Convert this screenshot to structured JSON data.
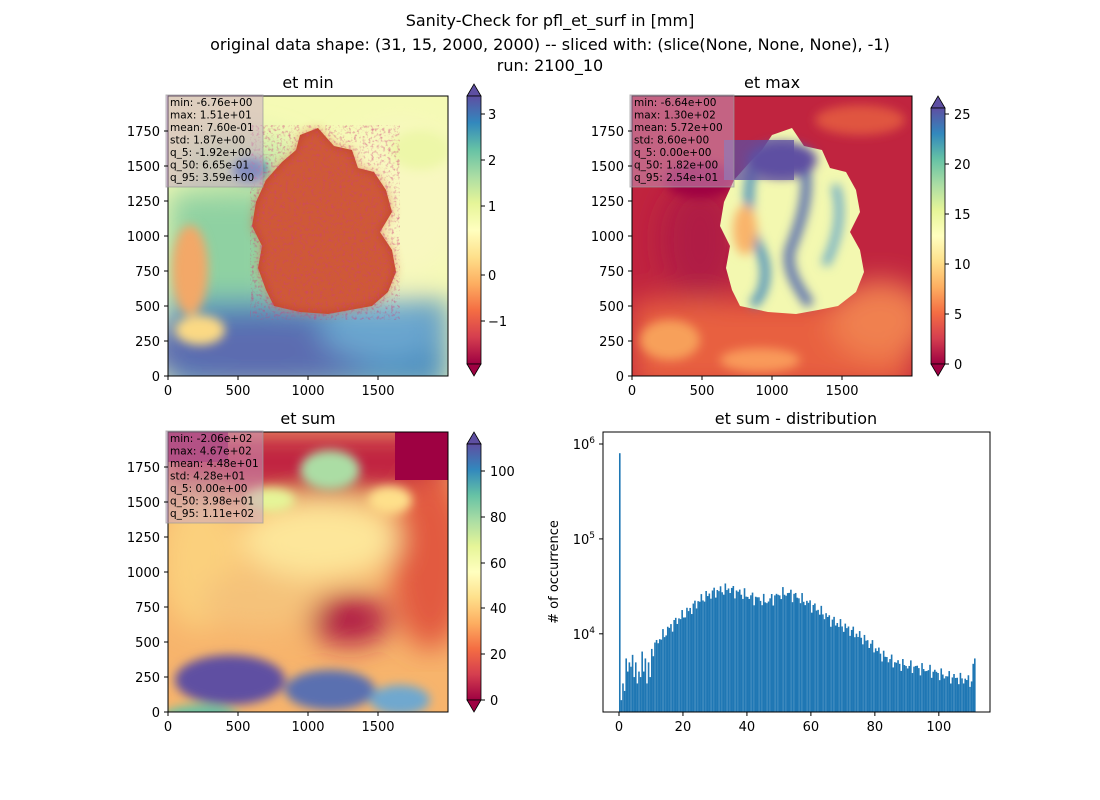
{
  "figure": {
    "title_line1": "Sanity-Check for pfl_et_surf in [mm]",
    "title_line2": "original data shape: (31, 15, 2000, 2000) -- sliced with: (slice(None, None, None), -1)",
    "title_line3": "run: 2100_10"
  },
  "colors": {
    "hist_bar": "#1f77b4",
    "stats_box": "#c8a2c8",
    "colormap": "Spectral",
    "colormap_stops": [
      "#9e0142",
      "#d53e4f",
      "#f46d43",
      "#fdae61",
      "#fee08b",
      "#ffffbf",
      "#e6f598",
      "#abdda4",
      "#66c2a5",
      "#3288bd",
      "#5e4fa2"
    ]
  },
  "chart_data": [
    {
      "type": "heatmap",
      "title": "et min",
      "xticks": [
        "0",
        "500",
        "1000",
        "1500"
      ],
      "yticks": [
        "0",
        "250",
        "500",
        "750",
        "1000",
        "1250",
        "1500",
        "1750"
      ],
      "xlim": [
        0,
        2000
      ],
      "ylim": [
        0,
        2000
      ],
      "colorbar_ticks": [
        "3",
        "2",
        "1",
        "0",
        "−1"
      ],
      "colorbar_range": [
        -2.0,
        3.7
      ],
      "stats": [
        "min: -6.76e+00",
        "max: 1.51e+01",
        "mean: 7.60e-01",
        "std: 1.87e+00",
        "q_5: -1.92e+00",
        "q_50: 6.65e-01",
        "q_95: 3.59e+00"
      ]
    },
    {
      "type": "heatmap",
      "title": "et max",
      "xticks": [
        "0",
        "500",
        "1000",
        "1500"
      ],
      "yticks": [
        "0",
        "250",
        "500",
        "750",
        "1000",
        "1250",
        "1500",
        "1750"
      ],
      "xlim": [
        0,
        2000
      ],
      "ylim": [
        0,
        2000
      ],
      "colorbar_ticks": [
        "25",
        "20",
        "15",
        "10",
        "5",
        "0"
      ],
      "colorbar_range": [
        0,
        26
      ],
      "stats": [
        "min: -6.64e+00",
        "max: 1.30e+02",
        "mean: 5.72e+00",
        "std: 8.60e+00",
        "q_5: 0.00e+00",
        "q_50: 1.82e+00",
        "q_95: 2.54e+01"
      ]
    },
    {
      "type": "heatmap",
      "title": "et sum",
      "xticks": [
        "0",
        "500",
        "1000",
        "1500"
      ],
      "yticks": [
        "0",
        "250",
        "500",
        "750",
        "1000",
        "1250",
        "1500",
        "1750"
      ],
      "xlim": [
        0,
        2000
      ],
      "ylim": [
        0,
        2000
      ],
      "colorbar_ticks": [
        "100",
        "80",
        "60",
        "40",
        "20",
        "0"
      ],
      "colorbar_range": [
        0,
        116
      ],
      "stats": [
        "min: -2.06e+02",
        "max: 4.67e+02",
        "mean: 4.48e+01",
        "std: 4.28e+01",
        "q_5: 0.00e+00",
        "q_50: 3.98e+01",
        "q_95: 1.11e+02"
      ]
    },
    {
      "type": "bar",
      "title": "et sum - distribution",
      "ylabel": "# of occurrence",
      "yscale": "log",
      "ylim": [
        1500,
        1000000
      ],
      "xlim": [
        -5,
        116
      ],
      "xticks": [
        0,
        20,
        40,
        60,
        80,
        100
      ],
      "yticks": [
        {
          "base": "10",
          "exp": "4",
          "value": 10000
        },
        {
          "base": "10",
          "exp": "5",
          "value": 100000
        },
        {
          "base": "10",
          "exp": "6",
          "value": 1000000
        }
      ],
      "bin_width": 0.5,
      "bins": [
        [
          0,
          800000
        ],
        [
          0.5,
          2000
        ],
        [
          1,
          3000
        ],
        [
          1.5,
          2500
        ],
        [
          2,
          5500
        ],
        [
          2.5,
          4000
        ],
        [
          3,
          5000
        ],
        [
          3.5,
          4500
        ],
        [
          4,
          6000
        ],
        [
          4.5,
          3500
        ],
        [
          5,
          5000
        ],
        [
          5.5,
          3000
        ],
        [
          6,
          4000
        ],
        [
          6.5,
          3500
        ],
        [
          7,
          6500
        ],
        [
          7.5,
          4000
        ],
        [
          8,
          5500
        ],
        [
          8.5,
          3000
        ],
        [
          9,
          5000
        ],
        [
          9.5,
          3500
        ],
        [
          10,
          6500
        ],
        [
          12,
          8500
        ],
        [
          14,
          10000
        ],
        [
          16,
          12000
        ],
        [
          18,
          14000
        ],
        [
          20,
          16000
        ],
        [
          22,
          18000
        ],
        [
          24,
          21000
        ],
        [
          26,
          24000
        ],
        [
          28,
          26000
        ],
        [
          30,
          28000
        ],
        [
          32,
          29000
        ],
        [
          34,
          30000
        ],
        [
          36,
          28000
        ],
        [
          38,
          27000
        ],
        [
          40,
          25000
        ],
        [
          42,
          24000
        ],
        [
          44,
          23000
        ],
        [
          46,
          22000
        ],
        [
          48,
          24000
        ],
        [
          50,
          26000
        ],
        [
          52,
          27000
        ],
        [
          54,
          26000
        ],
        [
          56,
          24000
        ],
        [
          58,
          22000
        ],
        [
          60,
          20000
        ],
        [
          62,
          18000
        ],
        [
          64,
          16000
        ],
        [
          66,
          14000
        ],
        [
          68,
          13000
        ],
        [
          70,
          12000
        ],
        [
          72,
          11000
        ],
        [
          74,
          10000
        ],
        [
          76,
          9000
        ],
        [
          78,
          8000
        ],
        [
          80,
          7000
        ],
        [
          82,
          6000
        ],
        [
          84,
          5500
        ],
        [
          86,
          5000
        ],
        [
          88,
          4800
        ],
        [
          90,
          4600
        ],
        [
          92,
          4500
        ],
        [
          94,
          4300
        ],
        [
          96,
          4200
        ],
        [
          98,
          4000
        ],
        [
          100,
          3800
        ],
        [
          102,
          3600
        ],
        [
          104,
          3500
        ],
        [
          106,
          3400
        ],
        [
          108,
          3300
        ],
        [
          110,
          3200
        ],
        [
          111,
          5500
        ]
      ]
    }
  ]
}
